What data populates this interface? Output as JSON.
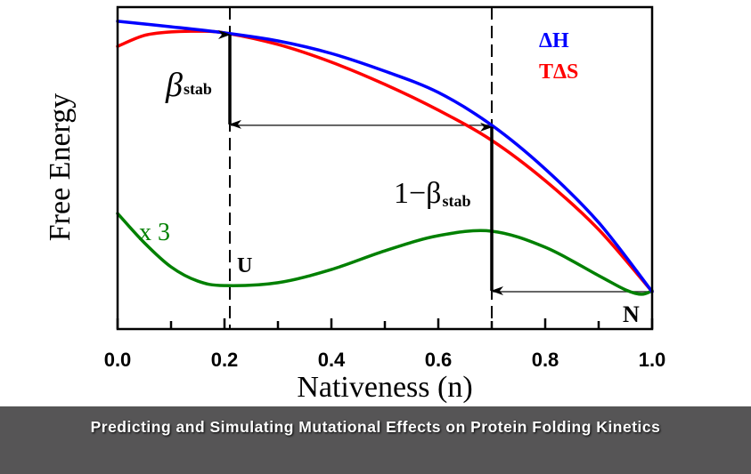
{
  "chart_data": {
    "type": "line",
    "title": "",
    "xlabel": "Nativeness (n)",
    "ylabel": "Free Energy",
    "xlim": [
      0.0,
      1.0
    ],
    "ylim": [
      0.0,
      1.0
    ],
    "y_units": "arbitrary",
    "grid": false,
    "x_major_ticks": [
      0.0,
      0.2,
      0.4,
      0.6,
      0.8,
      1.0
    ],
    "x_tick_labels": [
      "0.0",
      "0.2",
      "0.4",
      "0.6",
      "0.8",
      "1.0"
    ],
    "x_minor_ticks": [
      0.1,
      0.3,
      0.5,
      0.7,
      0.9
    ],
    "legend": {
      "placement": "top-right",
      "entries": [
        {
          "label": "ΔH",
          "color": "#0000ff"
        },
        {
          "label": "TΔS",
          "color": "#ff0000"
        }
      ]
    },
    "series": [
      {
        "name": "ΔH",
        "color": "#0000ff",
        "x": [
          0.0,
          0.1,
          0.2,
          0.3,
          0.4,
          0.5,
          0.6,
          0.7,
          0.8,
          0.9,
          1.0
        ],
        "y": [
          0.956,
          0.939,
          0.92,
          0.895,
          0.856,
          0.801,
          0.735,
          0.633,
          0.497,
          0.331,
          0.116
        ]
      },
      {
        "name": "TΔS",
        "color": "#ff0000",
        "x": [
          0.0,
          0.05,
          0.1,
          0.15,
          0.2,
          0.3,
          0.4,
          0.5,
          0.6,
          0.7,
          0.8,
          0.9,
          1.0
        ],
        "y": [
          0.878,
          0.912,
          0.923,
          0.925,
          0.92,
          0.884,
          0.829,
          0.76,
          0.68,
          0.586,
          0.461,
          0.309,
          0.116
        ]
      },
      {
        "name": "Free Energy (x 3)",
        "color": "#008000",
        "x": [
          0.0,
          0.05,
          0.1,
          0.15,
          0.2,
          0.3,
          0.4,
          0.5,
          0.6,
          0.7,
          0.8,
          0.9,
          0.95,
          0.98,
          1.0
        ],
        "y": [
          0.359,
          0.268,
          0.193,
          0.149,
          0.135,
          0.144,
          0.185,
          0.243,
          0.29,
          0.304,
          0.254,
          0.166,
          0.122,
          0.108,
          0.119
        ]
      }
    ],
    "reference_lines": {
      "vertical_dashed": [
        0.21,
        0.7
      ],
      "horizontal": [
        {
          "y": 0.633,
          "x_from": 0.21,
          "x_to": 0.7
        },
        {
          "y": 0.116,
          "x_from": 0.7,
          "x_to": 1.0
        }
      ]
    },
    "arrows": [
      {
        "x": 0.21,
        "y_from": 0.92,
        "y_to": 0.633,
        "label_main": "β",
        "label_sub": "stab"
      },
      {
        "x": 0.7,
        "y_from": 0.633,
        "y_to": 0.116,
        "label_main": "1−β",
        "label_sub": "stab"
      }
    ],
    "annotations": [
      {
        "text": "x 3",
        "color": "#008000"
      },
      {
        "text": "U"
      },
      {
        "text": "N"
      }
    ]
  },
  "banner": {
    "title": "Predicting and Simulating Mutational Effects on Protein Folding Kinetics"
  }
}
